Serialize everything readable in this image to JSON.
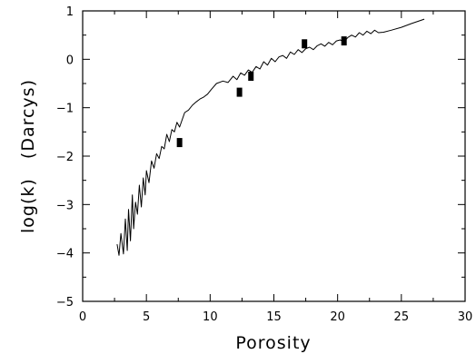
{
  "chart_data": {
    "type": "line",
    "xlabel": "Porosity",
    "ylabel": "log(k)   (Darcys)",
    "xlim": [
      0,
      30
    ],
    "ylim": [
      -5,
      1
    ],
    "x_ticks": [
      0,
      5,
      10,
      15,
      20,
      25,
      30
    ],
    "y_ticks": [
      -5,
      -4,
      -3,
      -2,
      -1,
      0,
      1
    ],
    "grid": false,
    "series": [
      {
        "style": "line",
        "x": [
          2.7,
          2.85,
          3.0,
          3.2,
          3.35,
          3.5,
          3.6,
          3.75,
          3.9,
          4.0,
          4.15,
          4.3,
          4.45,
          4.6,
          4.75,
          4.9,
          5.0,
          5.2,
          5.4,
          5.6,
          5.8,
          6.0,
          6.2,
          6.4,
          6.6,
          6.8,
          7.0,
          7.2,
          7.4,
          7.6,
          8.0,
          8.3,
          8.6,
          8.9,
          9.2,
          9.5,
          9.8,
          10.1,
          10.5,
          11.0,
          11.4,
          11.8,
          12.1,
          12.4,
          12.7,
          13.0,
          13.3,
          13.6,
          13.9,
          14.2,
          14.5,
          14.8,
          15.1,
          15.4,
          15.7,
          16.0,
          16.3,
          16.6,
          16.9,
          17.2,
          17.5,
          17.8,
          18.1,
          18.4,
          18.7,
          19.0,
          19.3,
          19.6,
          19.9,
          20.2,
          20.5,
          20.8,
          21.1,
          21.4,
          21.7,
          22.0,
          22.3,
          22.6,
          22.9,
          23.2,
          23.6,
          24.2,
          25.0,
          25.8,
          26.8
        ],
        "y": [
          -3.82,
          -4.05,
          -3.6,
          -4.02,
          -3.3,
          -3.95,
          -3.1,
          -3.75,
          -2.8,
          -3.5,
          -2.95,
          -3.2,
          -2.6,
          -3.05,
          -2.45,
          -2.8,
          -2.3,
          -2.55,
          -2.1,
          -2.25,
          -1.95,
          -2.05,
          -1.8,
          -1.85,
          -1.55,
          -1.7,
          -1.45,
          -1.5,
          -1.3,
          -1.4,
          -1.1,
          -1.05,
          -0.95,
          -0.88,
          -0.82,
          -0.78,
          -0.72,
          -0.62,
          -0.5,
          -0.45,
          -0.48,
          -0.35,
          -0.42,
          -0.28,
          -0.33,
          -0.22,
          -0.27,
          -0.15,
          -0.2,
          -0.05,
          -0.12,
          0.02,
          -0.05,
          0.05,
          0.08,
          0.02,
          0.15,
          0.1,
          0.2,
          0.14,
          0.22,
          0.25,
          0.2,
          0.28,
          0.32,
          0.27,
          0.35,
          0.3,
          0.38,
          0.4,
          0.36,
          0.45,
          0.5,
          0.46,
          0.55,
          0.5,
          0.58,
          0.53,
          0.6,
          0.55,
          0.56,
          0.6,
          0.66,
          0.74,
          0.83
        ]
      },
      {
        "style": "markers",
        "x": [
          7.6,
          12.3,
          13.2,
          17.4,
          20.5
        ],
        "y": [
          -1.72,
          -0.68,
          -0.35,
          0.32,
          0.38
        ]
      }
    ]
  }
}
